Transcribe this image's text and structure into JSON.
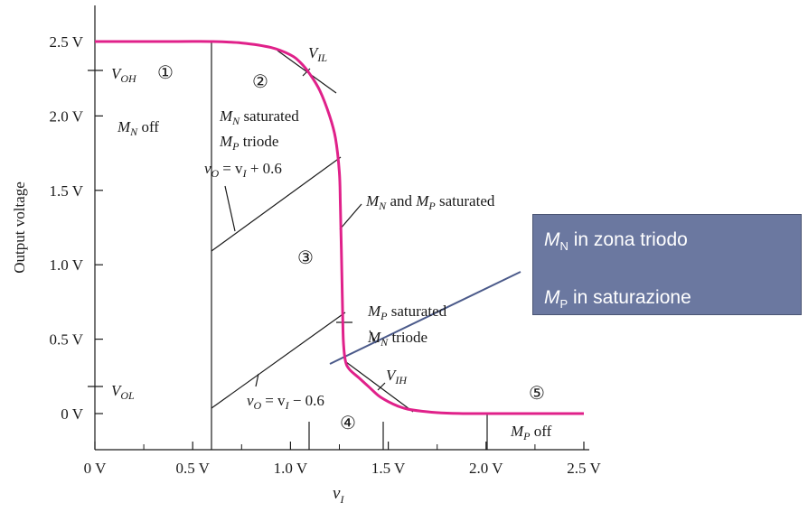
{
  "chart_data": {
    "type": "line",
    "xlabel": "v",
    "xlabel_sub": "I",
    "ylabel": "Output voltage",
    "xlim": [
      0,
      2.5
    ],
    "ylim": [
      0,
      2.5
    ],
    "x_ticks": [
      0,
      0.5,
      1.0,
      1.5,
      2.0,
      2.5
    ],
    "x_tick_labels": [
      "0 V",
      "0.5 V",
      "1.0 V",
      "1.5 V",
      "2.0 V",
      "2.5 V"
    ],
    "y_ticks": [
      0,
      0.5,
      1.0,
      1.5,
      2.0,
      2.5
    ],
    "y_tick_labels": [
      "0 V",
      "0.5 V",
      "1.0 V",
      "1.5 V",
      "2.0 V",
      "2.5 V"
    ],
    "vtc_color": "#e0218a",
    "series": [
      {
        "x": [
          0,
          0.4,
          0.6,
          0.75,
          0.9,
          1.0,
          1.05,
          1.1,
          1.15,
          1.2,
          1.23,
          1.25,
          1.255,
          1.26,
          1.265,
          1.27,
          1.28,
          1.3,
          1.35,
          1.4,
          1.45,
          1.5,
          1.55,
          1.6,
          1.7,
          1.8,
          1.9,
          2.0,
          2.2,
          2.5
        ],
        "y": [
          2.5,
          2.5,
          2.5,
          2.49,
          2.46,
          2.41,
          2.36,
          2.28,
          2.17,
          2.0,
          1.85,
          1.62,
          1.4,
          1.1,
          0.8,
          0.5,
          0.36,
          0.3,
          0.24,
          0.18,
          0.12,
          0.08,
          0.05,
          0.03,
          0.012,
          0.003,
          0.0,
          0.0,
          0.0,
          0.0
        ]
      }
    ],
    "annotations": {
      "voh": "V",
      "voh_sub": "OH",
      "vol": "V",
      "vol_sub": "OL",
      "vil": "V",
      "vil_sub": "IL",
      "vih": "V",
      "vih_sub": "IH",
      "r1": "①",
      "r2": "②",
      "r3": "③",
      "r4": "④",
      "r5": "⑤",
      "mn_off_m": "M",
      "mn_off_sub": "N",
      "mn_off_text": " off",
      "mn_sat_m": "M",
      "mn_sat_sub": "N",
      "mn_sat_text": " saturated",
      "mp_tri_m": "M",
      "mp_tri_sub": "P",
      "mp_tri_text": " triode",
      "eq_top": "= v",
      "eq_top_tail": " + 0.6",
      "eq_bot": "= v",
      "eq_bot_tail": " − 0.6",
      "v_o": "v",
      "v_o_sub": "O",
      "v_i_sub": "I",
      "both_m1": "M",
      "both_sub1": "N",
      "both_and": " and ",
      "both_m2": "M",
      "both_sub2": "P",
      "both_text": " saturated",
      "mp_sat_m": "M",
      "mp_sat_sub": "P",
      "mp_sat_text": " saturated",
      "mn_tri_m": "M",
      "mn_tri_sub": "N",
      "mn_tri_text": " triode",
      "mp_off_m": "M",
      "mp_off_sub": "P",
      "mp_off_text": " off"
    }
  },
  "callout": {
    "line1_m": "M",
    "line1_sub": "N",
    "line1_text": " in zona triodo",
    "line2_m": "M",
    "line2_sub": "P",
    "line2_text": " in saturazione",
    "bg_color": "#6b78a0"
  }
}
